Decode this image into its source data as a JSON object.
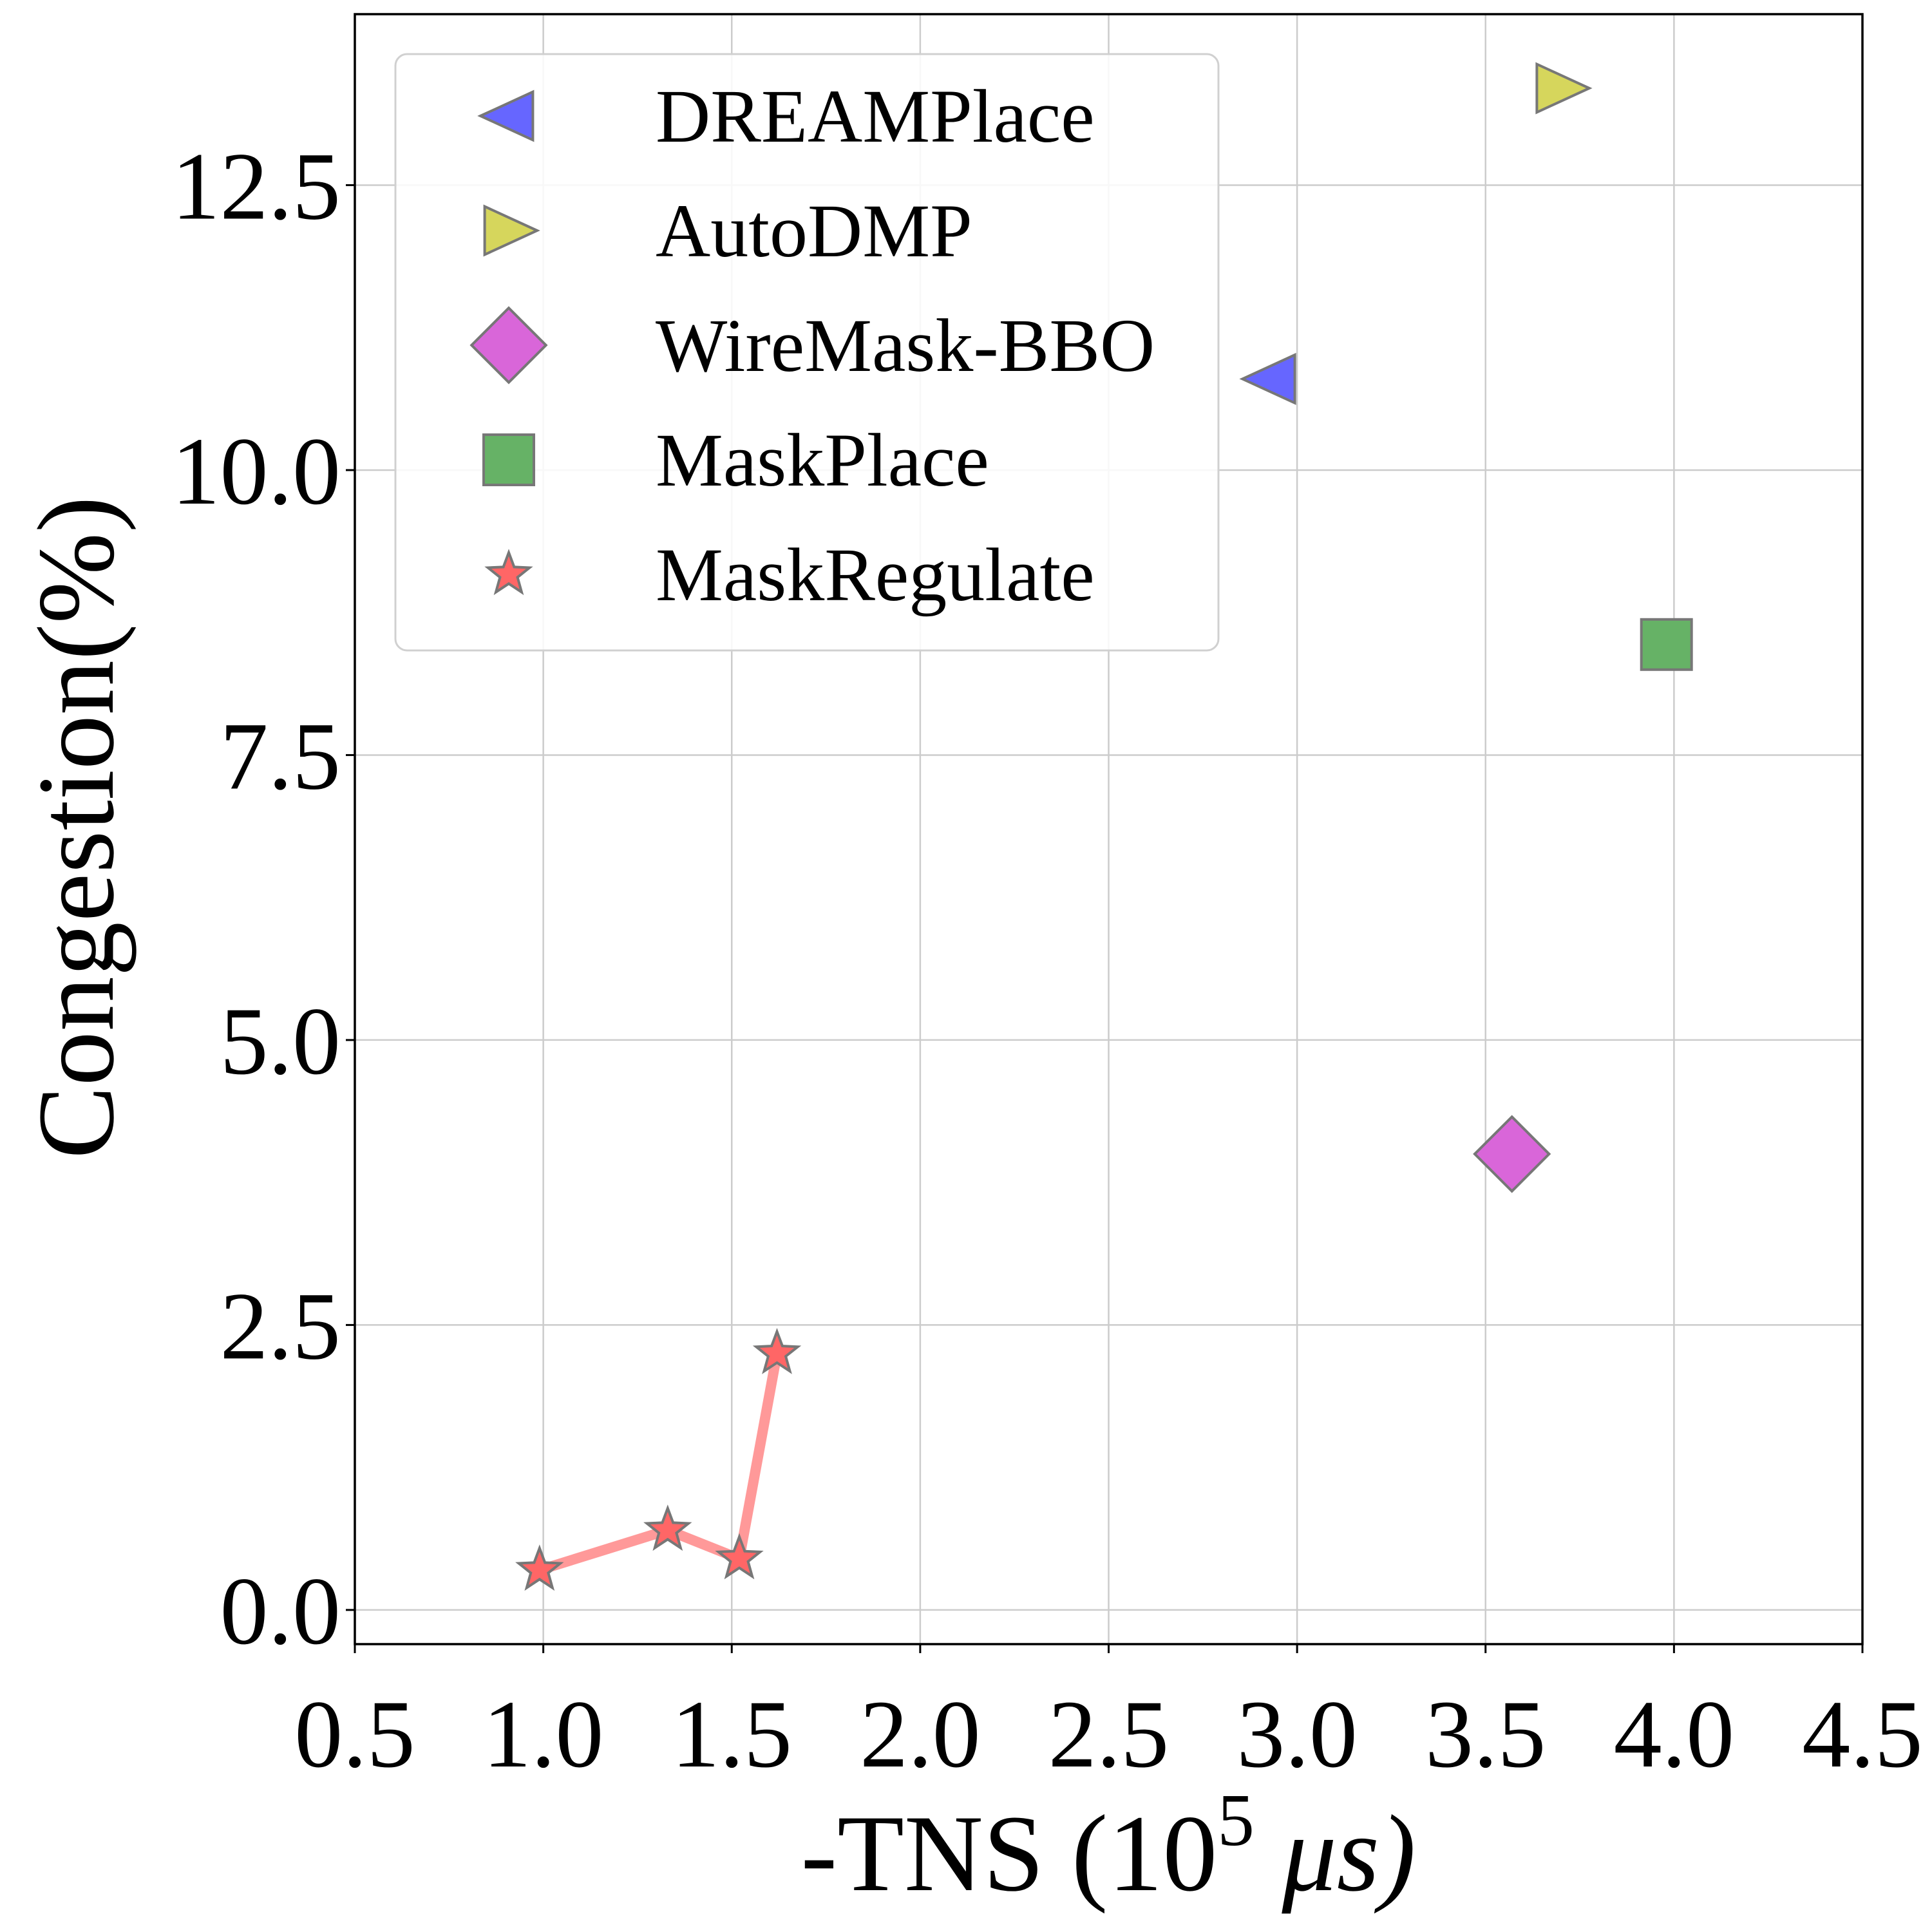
{
  "chart_data": {
    "type": "scatter",
    "xlabel": {
      "prefix": "-TNS (",
      "base": "10",
      "exponent": "5",
      "unit": " μs)"
    },
    "ylabel": "Congestion(%)",
    "xlim": [
      0.5,
      4.5
    ],
    "ylim": [
      -0.3,
      14.0
    ],
    "xticks": [
      0.5,
      1.0,
      1.5,
      2.0,
      2.5,
      3.0,
      3.5,
      4.0,
      4.5
    ],
    "xtick_labels": [
      "0.5",
      "1.0",
      "1.5",
      "2.0",
      "2.5",
      "3.0",
      "3.5",
      "4.0",
      "4.5"
    ],
    "yticks": [
      0.0,
      2.5,
      5.0,
      7.5,
      10.0,
      12.5
    ],
    "ytick_labels": [
      "0.0",
      "2.5",
      "5.0",
      "7.5",
      "10.0",
      "12.5"
    ],
    "grid": true,
    "legend_position": "top-left",
    "series": [
      {
        "name": "DREAMPlace",
        "marker": "triangle-left",
        "color": "#6666ff",
        "x": [
          2.93
        ],
        "y": [
          10.8
        ],
        "connect": false
      },
      {
        "name": "AutoDMP",
        "marker": "triangle-right",
        "color": "#d6d65c",
        "x": [
          3.7
        ],
        "y": [
          13.35
        ],
        "connect": false
      },
      {
        "name": "WireMask-BBO",
        "marker": "diamond",
        "color": "#d966d9",
        "x": [
          3.57
        ],
        "y": [
          4.0
        ],
        "connect": false
      },
      {
        "name": "MaskPlace",
        "marker": "square",
        "color": "#66b266",
        "x": [
          3.98
        ],
        "y": [
          8.47
        ],
        "connect": false
      },
      {
        "name": "MaskRegulate",
        "marker": "star",
        "color": "#ff6666",
        "x": [
          0.99,
          1.33,
          1.52,
          1.62
        ],
        "y": [
          0.35,
          0.7,
          0.45,
          2.25
        ],
        "connect": true,
        "line_color": "#ff9999"
      }
    ]
  }
}
